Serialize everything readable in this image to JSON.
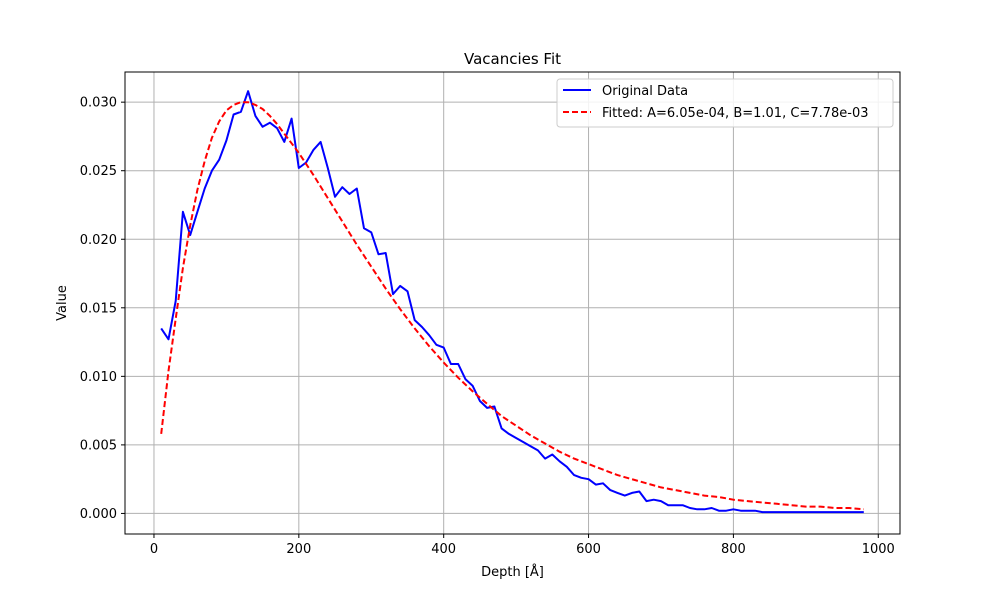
{
  "chart_data": {
    "type": "line",
    "title": "Vacancies Fit",
    "xlabel": "Depth [Å]",
    "ylabel": "Value",
    "xlim": [
      -40,
      1030
    ],
    "ylim": [
      -0.0015,
      0.0322
    ],
    "grid": true,
    "legend_position": "top-right",
    "x_ticks": [
      0,
      200,
      400,
      600,
      800,
      1000
    ],
    "x_tick_labels": [
      "0",
      "200",
      "400",
      "600",
      "800",
      "1000"
    ],
    "y_ticks": [
      0.0,
      0.005,
      0.01,
      0.015,
      0.02,
      0.025,
      0.03
    ],
    "y_tick_labels": [
      "0.000",
      "0.005",
      "0.010",
      "0.015",
      "0.020",
      "0.025",
      "0.030"
    ],
    "series": [
      {
        "name": "Original Data",
        "color": "#0000ff",
        "style": "solid",
        "x": [
          10,
          20,
          30,
          40,
          50,
          60,
          70,
          80,
          90,
          100,
          110,
          120,
          130,
          140,
          150,
          160,
          170,
          180,
          190,
          200,
          210,
          220,
          230,
          240,
          250,
          260,
          270,
          280,
          290,
          300,
          310,
          320,
          330,
          340,
          350,
          360,
          370,
          380,
          390,
          400,
          410,
          420,
          430,
          440,
          450,
          460,
          470,
          480,
          490,
          500,
          510,
          520,
          530,
          540,
          550,
          560,
          570,
          580,
          590,
          600,
          610,
          620,
          630,
          640,
          650,
          660,
          670,
          680,
          690,
          700,
          710,
          720,
          730,
          740,
          750,
          760,
          770,
          780,
          790,
          800,
          810,
          820,
          830,
          840,
          850,
          860,
          870,
          880,
          890,
          900,
          910,
          920,
          930,
          940,
          950,
          960,
          970,
          980
        ],
        "y": [
          0.0135,
          0.0127,
          0.0155,
          0.022,
          0.0203,
          0.022,
          0.0237,
          0.025,
          0.0258,
          0.0272,
          0.0291,
          0.0293,
          0.0308,
          0.029,
          0.0282,
          0.0285,
          0.0281,
          0.0271,
          0.0288,
          0.0252,
          0.0256,
          0.0265,
          0.0271,
          0.0252,
          0.0231,
          0.0238,
          0.0233,
          0.0237,
          0.0208,
          0.0205,
          0.0189,
          0.019,
          0.016,
          0.0166,
          0.0162,
          0.0141,
          0.0136,
          0.013,
          0.0123,
          0.0121,
          0.0109,
          0.0109,
          0.0098,
          0.0093,
          0.0082,
          0.0077,
          0.0078,
          0.0062,
          0.0058,
          0.0055,
          0.0052,
          0.0049,
          0.0046,
          0.004,
          0.0043,
          0.0038,
          0.0034,
          0.0028,
          0.0026,
          0.0025,
          0.0021,
          0.0022,
          0.0017,
          0.0015,
          0.0013,
          0.0015,
          0.0016,
          0.0009,
          0.001,
          0.0009,
          0.0006,
          0.0006,
          0.0006,
          0.0004,
          0.0003,
          0.0003,
          0.0004,
          0.0002,
          0.0002,
          0.0003,
          0.0002,
          0.0002,
          0.0002,
          0.0001,
          0.0001,
          0.0001,
          0.0001,
          0.0001,
          0.0001,
          0.0001,
          0.0001,
          0.0001,
          0.0001,
          0.0001,
          0.0001,
          0.0001,
          0.0001,
          0.0001
        ]
      },
      {
        "name": "Fitted: A=6.05e-04, B=1.01, C=7.78e-03",
        "color": "#ff0000",
        "style": "dashed",
        "x": [
          10,
          20,
          30,
          40,
          50,
          60,
          70,
          80,
          90,
          100,
          110,
          120,
          130,
          140,
          150,
          160,
          170,
          180,
          190,
          200,
          220,
          240,
          260,
          280,
          300,
          320,
          340,
          360,
          380,
          400,
          420,
          440,
          460,
          480,
          500,
          520,
          540,
          560,
          580,
          600,
          620,
          640,
          660,
          680,
          700,
          720,
          740,
          760,
          780,
          800,
          820,
          840,
          860,
          880,
          900,
          920,
          940,
          960,
          980
        ],
        "y": [
          0.0058,
          0.0104,
          0.0142,
          0.0179,
          0.021,
          0.0236,
          0.0257,
          0.0274,
          0.0286,
          0.0294,
          0.0298,
          0.03,
          0.03,
          0.0298,
          0.0295,
          0.029,
          0.0284,
          0.0277,
          0.027,
          0.0263,
          0.0247,
          0.023,
          0.0213,
          0.0196,
          0.018,
          0.0164,
          0.0149,
          0.0135,
          0.0122,
          0.011,
          0.0099,
          0.0089,
          0.008,
          0.0071,
          0.0064,
          0.0057,
          0.0051,
          0.0045,
          0.004,
          0.0036,
          0.0032,
          0.0028,
          0.0025,
          0.0022,
          0.0019,
          0.0017,
          0.0015,
          0.0013,
          0.0012,
          0.001,
          0.0009,
          0.0008,
          0.0007,
          0.0006,
          0.0005,
          0.0005,
          0.0004,
          0.0004,
          0.0003
        ]
      }
    ]
  }
}
